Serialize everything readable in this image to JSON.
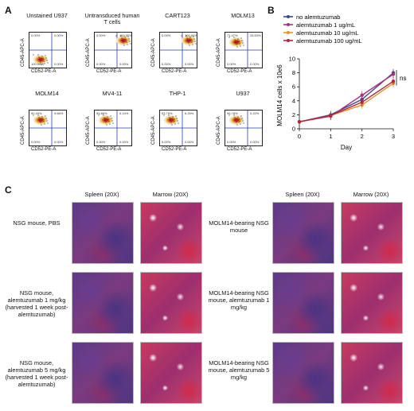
{
  "panels": {
    "a": "A",
    "b": "B",
    "c": "C"
  },
  "flow": {
    "xlabel": "CD52-PE-A",
    "ylabel": "CD45-APC-A",
    "plots": [
      {
        "title": "Unstained U937",
        "quads": [
          "0.00%",
          "0.00%",
          "100.00%",
          "0.00%"
        ],
        "pos": "ll"
      },
      {
        "title": "Untransduced human T cells",
        "quads": [
          "0.00%",
          "100.00%",
          "0.00%",
          "0.00%"
        ],
        "pos": "ur"
      },
      {
        "title": "CART123",
        "quads": [
          "0.00%",
          "100.00%",
          "0.00%",
          "0.00%"
        ],
        "pos": "ur"
      },
      {
        "title": "MOLM13",
        "quads": [
          "71.47%",
          "28.53%",
          "0.00%",
          "0.00%"
        ],
        "pos": "ul"
      },
      {
        "title": "MOLM14",
        "quads": [
          "90.34%",
          "9.66%",
          "0.00%",
          "0.00%"
        ],
        "pos": "ul"
      },
      {
        "title": "MV4-11",
        "quads": [
          "94.86%",
          "5.14%",
          "0.00%",
          "0.00%"
        ],
        "pos": "ul"
      },
      {
        "title": "THP-1",
        "quads": [
          "93.75%",
          "6.25%",
          "0.00%",
          "0.00%"
        ],
        "pos": "ul"
      },
      {
        "title": "U937",
        "quads": [
          "99.78%",
          "0.22%",
          "0.00%",
          "0.00%"
        ],
        "pos": "ul"
      }
    ]
  },
  "chart_data": {
    "type": "line",
    "x": [
      0,
      1,
      2,
      3
    ],
    "xlabel": "Day",
    "ylabel": "MOLM14 cells x 10e6",
    "ylim": [
      0,
      10
    ],
    "yticks": [
      "0",
      "2",
      "4",
      "6",
      "8",
      "10"
    ],
    "xticks": [
      "0",
      "1",
      "2",
      "3"
    ],
    "annotation": "ns",
    "legend_placement": "top-left",
    "series": [
      {
        "name": "no alemtuzumab",
        "color": "#3b4a8c",
        "values": [
          1.0,
          2.0,
          4.2,
          8.0
        ]
      },
      {
        "name": "alemtuzumab 1 ug/mL",
        "color": "#a8327a",
        "values": [
          1.0,
          1.8,
          4.8,
          7.8
        ]
      },
      {
        "name": "alemtuzumab 10 ug/mL",
        "color": "#e0962a",
        "values": [
          1.0,
          1.9,
          3.4,
          6.5
        ]
      },
      {
        "name": "alemtuzumab 100 ug/mL",
        "color": "#b8243a",
        "values": [
          1.0,
          1.9,
          3.8,
          6.8
        ]
      }
    ]
  },
  "histology": {
    "col_heads": [
      "Spleen (20X)",
      "Marrow (20X)",
      "Spleen (20X)",
      "Marrow (20X)"
    ],
    "left_rows": [
      "NSG mouse, PBS",
      "NSG mouse, alemtuzumab 1 mg/kg (harvested 1 week post-alemtuzumab)",
      "NSG mouse, alemtuzumab 5 mg/kg (harvested 1 week post-alemtuzumab)"
    ],
    "right_rows": [
      "MOLM14-bearing NSG mouse",
      "MOLM14-bearing NSG mouse, alemtuzumab 1 mg/kg",
      "MOLM14-bearing NSG mouse, alemtuzumab 5 mg/kg"
    ]
  }
}
